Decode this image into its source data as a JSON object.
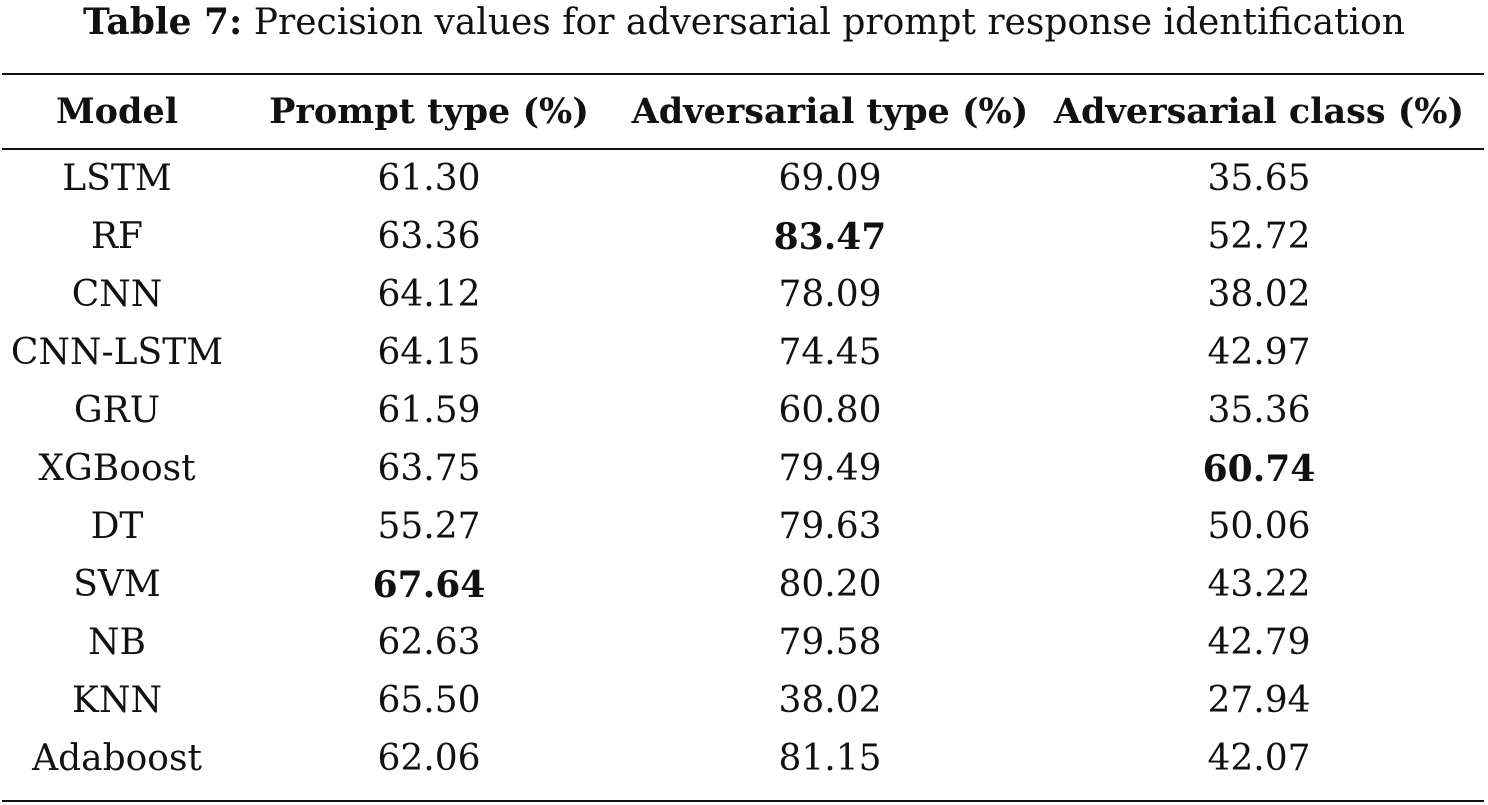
{
  "caption": {
    "label": "Table 7:",
    "text": "Precision values for adversarial prompt response identification"
  },
  "table": {
    "headers": [
      "Model",
      "Prompt type (%)",
      "Adversarial type (%)",
      "Adversarial class (%)"
    ],
    "rows": [
      {
        "model": "LSTM",
        "prompt_type": "61.30",
        "adversarial_type": "69.09",
        "adversarial_class": "35.65"
      },
      {
        "model": "RF",
        "prompt_type": "63.36",
        "adversarial_type": "83.47",
        "adversarial_class": "52.72"
      },
      {
        "model": "CNN",
        "prompt_type": "64.12",
        "adversarial_type": "78.09",
        "adversarial_class": "38.02"
      },
      {
        "model": "CNN-LSTM",
        "prompt_type": "64.15",
        "adversarial_type": "74.45",
        "adversarial_class": "42.97"
      },
      {
        "model": "GRU",
        "prompt_type": "61.59",
        "adversarial_type": "60.80",
        "adversarial_class": "35.36"
      },
      {
        "model": "XGBoost",
        "prompt_type": "63.75",
        "adversarial_type": "79.49",
        "adversarial_class": "60.74"
      },
      {
        "model": "DT",
        "prompt_type": "55.27",
        "adversarial_type": "79.63",
        "adversarial_class": "50.06"
      },
      {
        "model": "SVM",
        "prompt_type": "67.64",
        "adversarial_type": "80.20",
        "adversarial_class": "43.22"
      },
      {
        "model": "NB",
        "prompt_type": "62.63",
        "adversarial_type": "79.58",
        "adversarial_class": "42.79"
      },
      {
        "model": "KNN",
        "prompt_type": "65.50",
        "adversarial_type": "38.02",
        "adversarial_class": "27.94"
      },
      {
        "model": "Adaboost",
        "prompt_type": "62.06",
        "adversarial_type": "81.15",
        "adversarial_class": "42.07"
      }
    ],
    "bold_cells": [
      {
        "row": 1,
        "column": "adversarial_type"
      },
      {
        "row": 5,
        "column": "adversarial_class"
      },
      {
        "row": 7,
        "column": "prompt_type"
      }
    ]
  }
}
